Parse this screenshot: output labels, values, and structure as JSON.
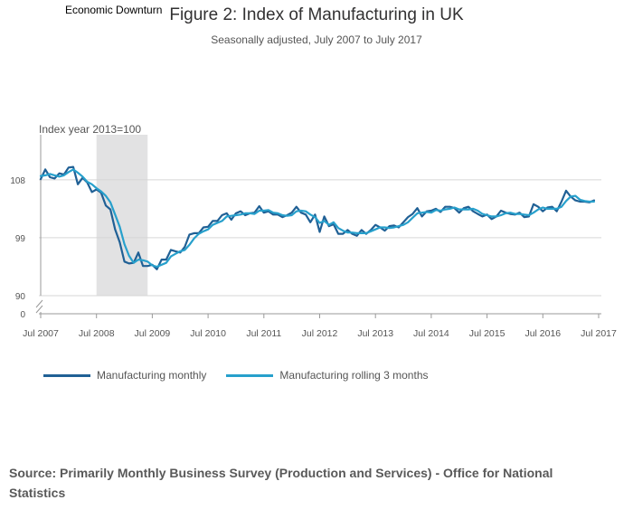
{
  "title": "Figure 2: Index of Manufacturing in UK",
  "subtitle": "Seasonally adjusted, July 2007 to July 2017",
  "shade_label": "Economic Downturn",
  "y_axis_label": "Index year 2013=100",
  "source": "Source: Primarily Monthly Business Survey (Production and Services) - Office for National Statistics",
  "colors": {
    "monthly": "#206095",
    "rolling": "#27a0cc",
    "shade": "#e2e2e3",
    "grid": "#d6d6d6"
  },
  "chart_data": {
    "type": "line",
    "title": "Figure 2: Index of Manufacturing in UK",
    "subtitle": "Seasonally adjusted, July 2007 to July 2017",
    "xlabel": "",
    "ylabel": "Index year 2013=100",
    "ylim": [
      0,
      115
    ],
    "y_ticks": [
      0,
      90,
      99,
      108
    ],
    "y_axis_break": true,
    "x_tick_labels": [
      "Jul 2007",
      "Jul 2008",
      "Jul 2009",
      "Jul 2010",
      "Jul 2011",
      "Jul 2012",
      "Jul 2013",
      "Jul 2014",
      "Jul 2015",
      "Jul 2016",
      "Jul 2017"
    ],
    "shaded_region": {
      "label": "Economic Downturn",
      "start_month": 12,
      "end_month": 23
    },
    "legend": [
      "Manufacturing monthly",
      "Manufacturing rolling 3 months"
    ],
    "series": [
      {
        "name": "Manufacturing monthly",
        "key": "monthly",
        "values": [
          108.1,
          109.6,
          108.4,
          108.2,
          109.0,
          108.8,
          109.9,
          110.0,
          107.3,
          108.3,
          107.6,
          106.1,
          106.5,
          106.0,
          104.0,
          103.4,
          100.3,
          98.3,
          95.3,
          95.0,
          95.1,
          96.7,
          94.6,
          94.6,
          94.8,
          94.1,
          95.6,
          95.6,
          97.1,
          96.9,
          96.7,
          97.6,
          99.5,
          99.7,
          99.7,
          100.6,
          100.7,
          101.6,
          101.6,
          102.5,
          102.8,
          101.8,
          102.8,
          103.1,
          102.5,
          102.8,
          102.9,
          103.9,
          102.9,
          103.1,
          102.6,
          102.6,
          102.2,
          102.5,
          102.9,
          103.8,
          102.9,
          102.6,
          101.4,
          102.6,
          99.9,
          102.3,
          100.8,
          101.1,
          99.6,
          99.6,
          100.2,
          99.6,
          99.3,
          100.2,
          99.6,
          100.2,
          101.0,
          100.6,
          100.1,
          100.8,
          100.9,
          100.6,
          101.4,
          102.2,
          102.7,
          103.6,
          102.3,
          103.1,
          103.2,
          103.5,
          103.0,
          103.8,
          103.8,
          103.6,
          102.9,
          103.6,
          103.8,
          103.1,
          102.7,
          102.3,
          102.6,
          101.9,
          102.3,
          103.2,
          102.9,
          102.7,
          102.6,
          102.9,
          102.2,
          102.3,
          104.2,
          103.8,
          103.1,
          103.7,
          103.8,
          103.1,
          104.6,
          106.3,
          105.4,
          104.8,
          104.6,
          104.6,
          104.5,
          104.8
        ]
      },
      {
        "name": "Manufacturing rolling 3 months",
        "key": "rolling",
        "values": [
          108.6,
          108.7,
          108.9,
          108.7,
          108.5,
          108.7,
          109.2,
          109.6,
          109.1,
          108.5,
          107.7,
          107.3,
          106.7,
          106.2,
          105.5,
          104.5,
          102.6,
          100.7,
          98.0,
          96.2,
          95.1,
          95.6,
          95.5,
          95.3,
          94.7,
          94.5,
          94.8,
          95.1,
          96.1,
          96.5,
          96.9,
          97.1,
          97.9,
          98.9,
          99.6,
          100.0,
          100.3,
          101.0,
          101.3,
          101.6,
          102.3,
          102.4,
          102.5,
          102.6,
          102.8,
          102.8,
          102.7,
          103.2,
          103.2,
          103.3,
          102.9,
          102.8,
          102.5,
          102.4,
          102.5,
          103.1,
          103.2,
          103.1,
          102.6,
          102.2,
          101.3,
          101.6,
          101.0,
          101.4,
          100.5,
          100.1,
          99.8,
          99.8,
          99.7,
          99.7,
          99.7,
          100.0,
          100.3,
          100.6,
          100.6,
          100.5,
          100.6,
          100.8,
          101.0,
          101.4,
          102.1,
          102.8,
          102.9,
          103.0,
          102.9,
          103.3,
          103.2,
          103.4,
          103.5,
          103.7,
          103.4,
          103.4,
          103.4,
          103.5,
          103.2,
          102.7,
          102.5,
          102.3,
          102.3,
          102.5,
          102.8,
          102.9,
          102.7,
          102.7,
          102.6,
          102.5,
          102.9,
          103.4,
          103.7,
          103.5,
          103.5,
          103.5,
          103.8,
          104.7,
          105.4,
          105.5,
          104.9,
          104.7,
          104.6,
          104.6
        ]
      }
    ]
  }
}
